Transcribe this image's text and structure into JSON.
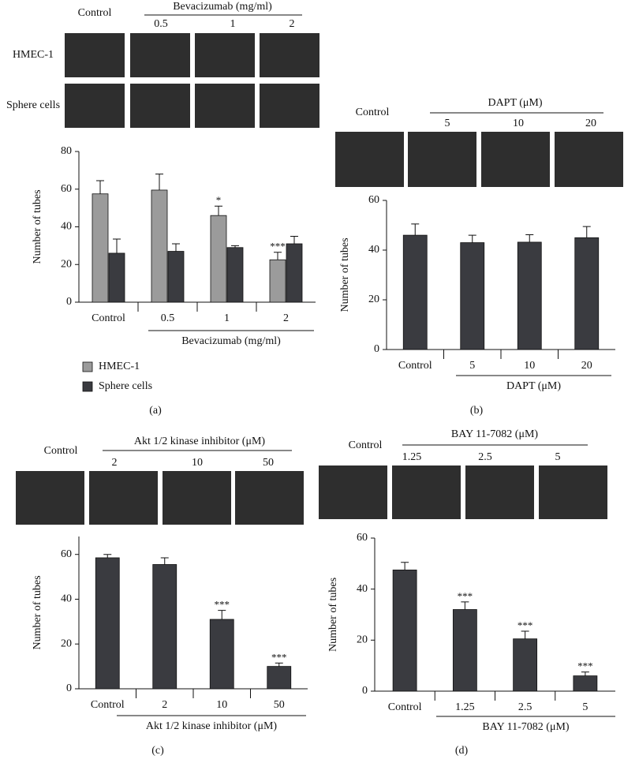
{
  "chart_data": [
    {
      "type": "bar",
      "panel_label": "(a)",
      "image_header": {
        "control": "Control",
        "group": "Bevacizumab (mg/ml)",
        "doses": [
          "0.5",
          "1",
          "2"
        ],
        "rows": [
          "HMEC-1",
          "Sphere cells"
        ]
      },
      "y_label": "Number of tubes",
      "ylim": [
        0,
        80
      ],
      "yticks": [
        0,
        20,
        40,
        60,
        80
      ],
      "categories": [
        "Control",
        "0.5",
        "1",
        "2"
      ],
      "group_label": "Bevacizumab (mg/ml)",
      "series": [
        {
          "name": "HMEC-1",
          "color": "#9b9b9b",
          "values": [
            57.5,
            59.5,
            46,
            22.5
          ],
          "errors": [
            7,
            8.5,
            5,
            4
          ],
          "sig": [
            null,
            null,
            "*",
            "***"
          ]
        },
        {
          "name": "Sphere cells",
          "color": "#3a3b40",
          "values": [
            26,
            27,
            29,
            31
          ],
          "errors": [
            7.5,
            4,
            1,
            4
          ],
          "sig": [
            null,
            null,
            null,
            null
          ]
        }
      ]
    },
    {
      "type": "bar",
      "panel_label": "(b)",
      "image_header": {
        "control": "Control",
        "group": "DAPT (μM)",
        "doses": [
          "5",
          "10",
          "20"
        ]
      },
      "y_label": "Number of tubes",
      "ylim": [
        0,
        60
      ],
      "yticks": [
        0,
        20,
        40,
        60
      ],
      "categories": [
        "Control",
        "5",
        "10",
        "20"
      ],
      "group_label": "DAPT (μM)",
      "color": "#3a3b40",
      "values": [
        46,
        43,
        43.2,
        45
      ],
      "errors": [
        4.5,
        3,
        3,
        4.5
      ],
      "sig": [
        null,
        null,
        null,
        null
      ]
    },
    {
      "type": "bar",
      "panel_label": "(c)",
      "image_header": {
        "control": "Control",
        "group": "Akt 1/2 kinase inhibitor (μM)",
        "doses": [
          "2",
          "10",
          "50"
        ]
      },
      "y_label": "Number of tubes",
      "ylim": [
        0,
        68
      ],
      "yticks": [
        0,
        20,
        40,
        60
      ],
      "categories": [
        "Control",
        "2",
        "10",
        "50"
      ],
      "group_label": "Akt 1/2 kinase inhibitor (μM)",
      "color": "#3a3b40",
      "values": [
        58.5,
        55.5,
        31,
        10
      ],
      "errors": [
        1.5,
        3,
        4,
        1.5
      ],
      "sig": [
        null,
        null,
        "***",
        "***"
      ]
    },
    {
      "type": "bar",
      "panel_label": "(d)",
      "image_header": {
        "control": "Control",
        "group": "BAY 11-7082 (μM)",
        "doses": [
          "1.25",
          "2.5",
          "5"
        ]
      },
      "y_label": "Number of tubes",
      "ylim": [
        0,
        60
      ],
      "yticks": [
        0,
        20,
        40,
        60
      ],
      "categories": [
        "Control",
        "1.25",
        "2.5",
        "5"
      ],
      "group_label": "BAY 11-7082 (μM)",
      "color": "#3a3b40",
      "values": [
        47.5,
        32,
        20.5,
        6
      ],
      "errors": [
        3,
        3,
        3,
        1.5
      ],
      "sig": [
        null,
        "***",
        "***",
        "***"
      ]
    }
  ]
}
